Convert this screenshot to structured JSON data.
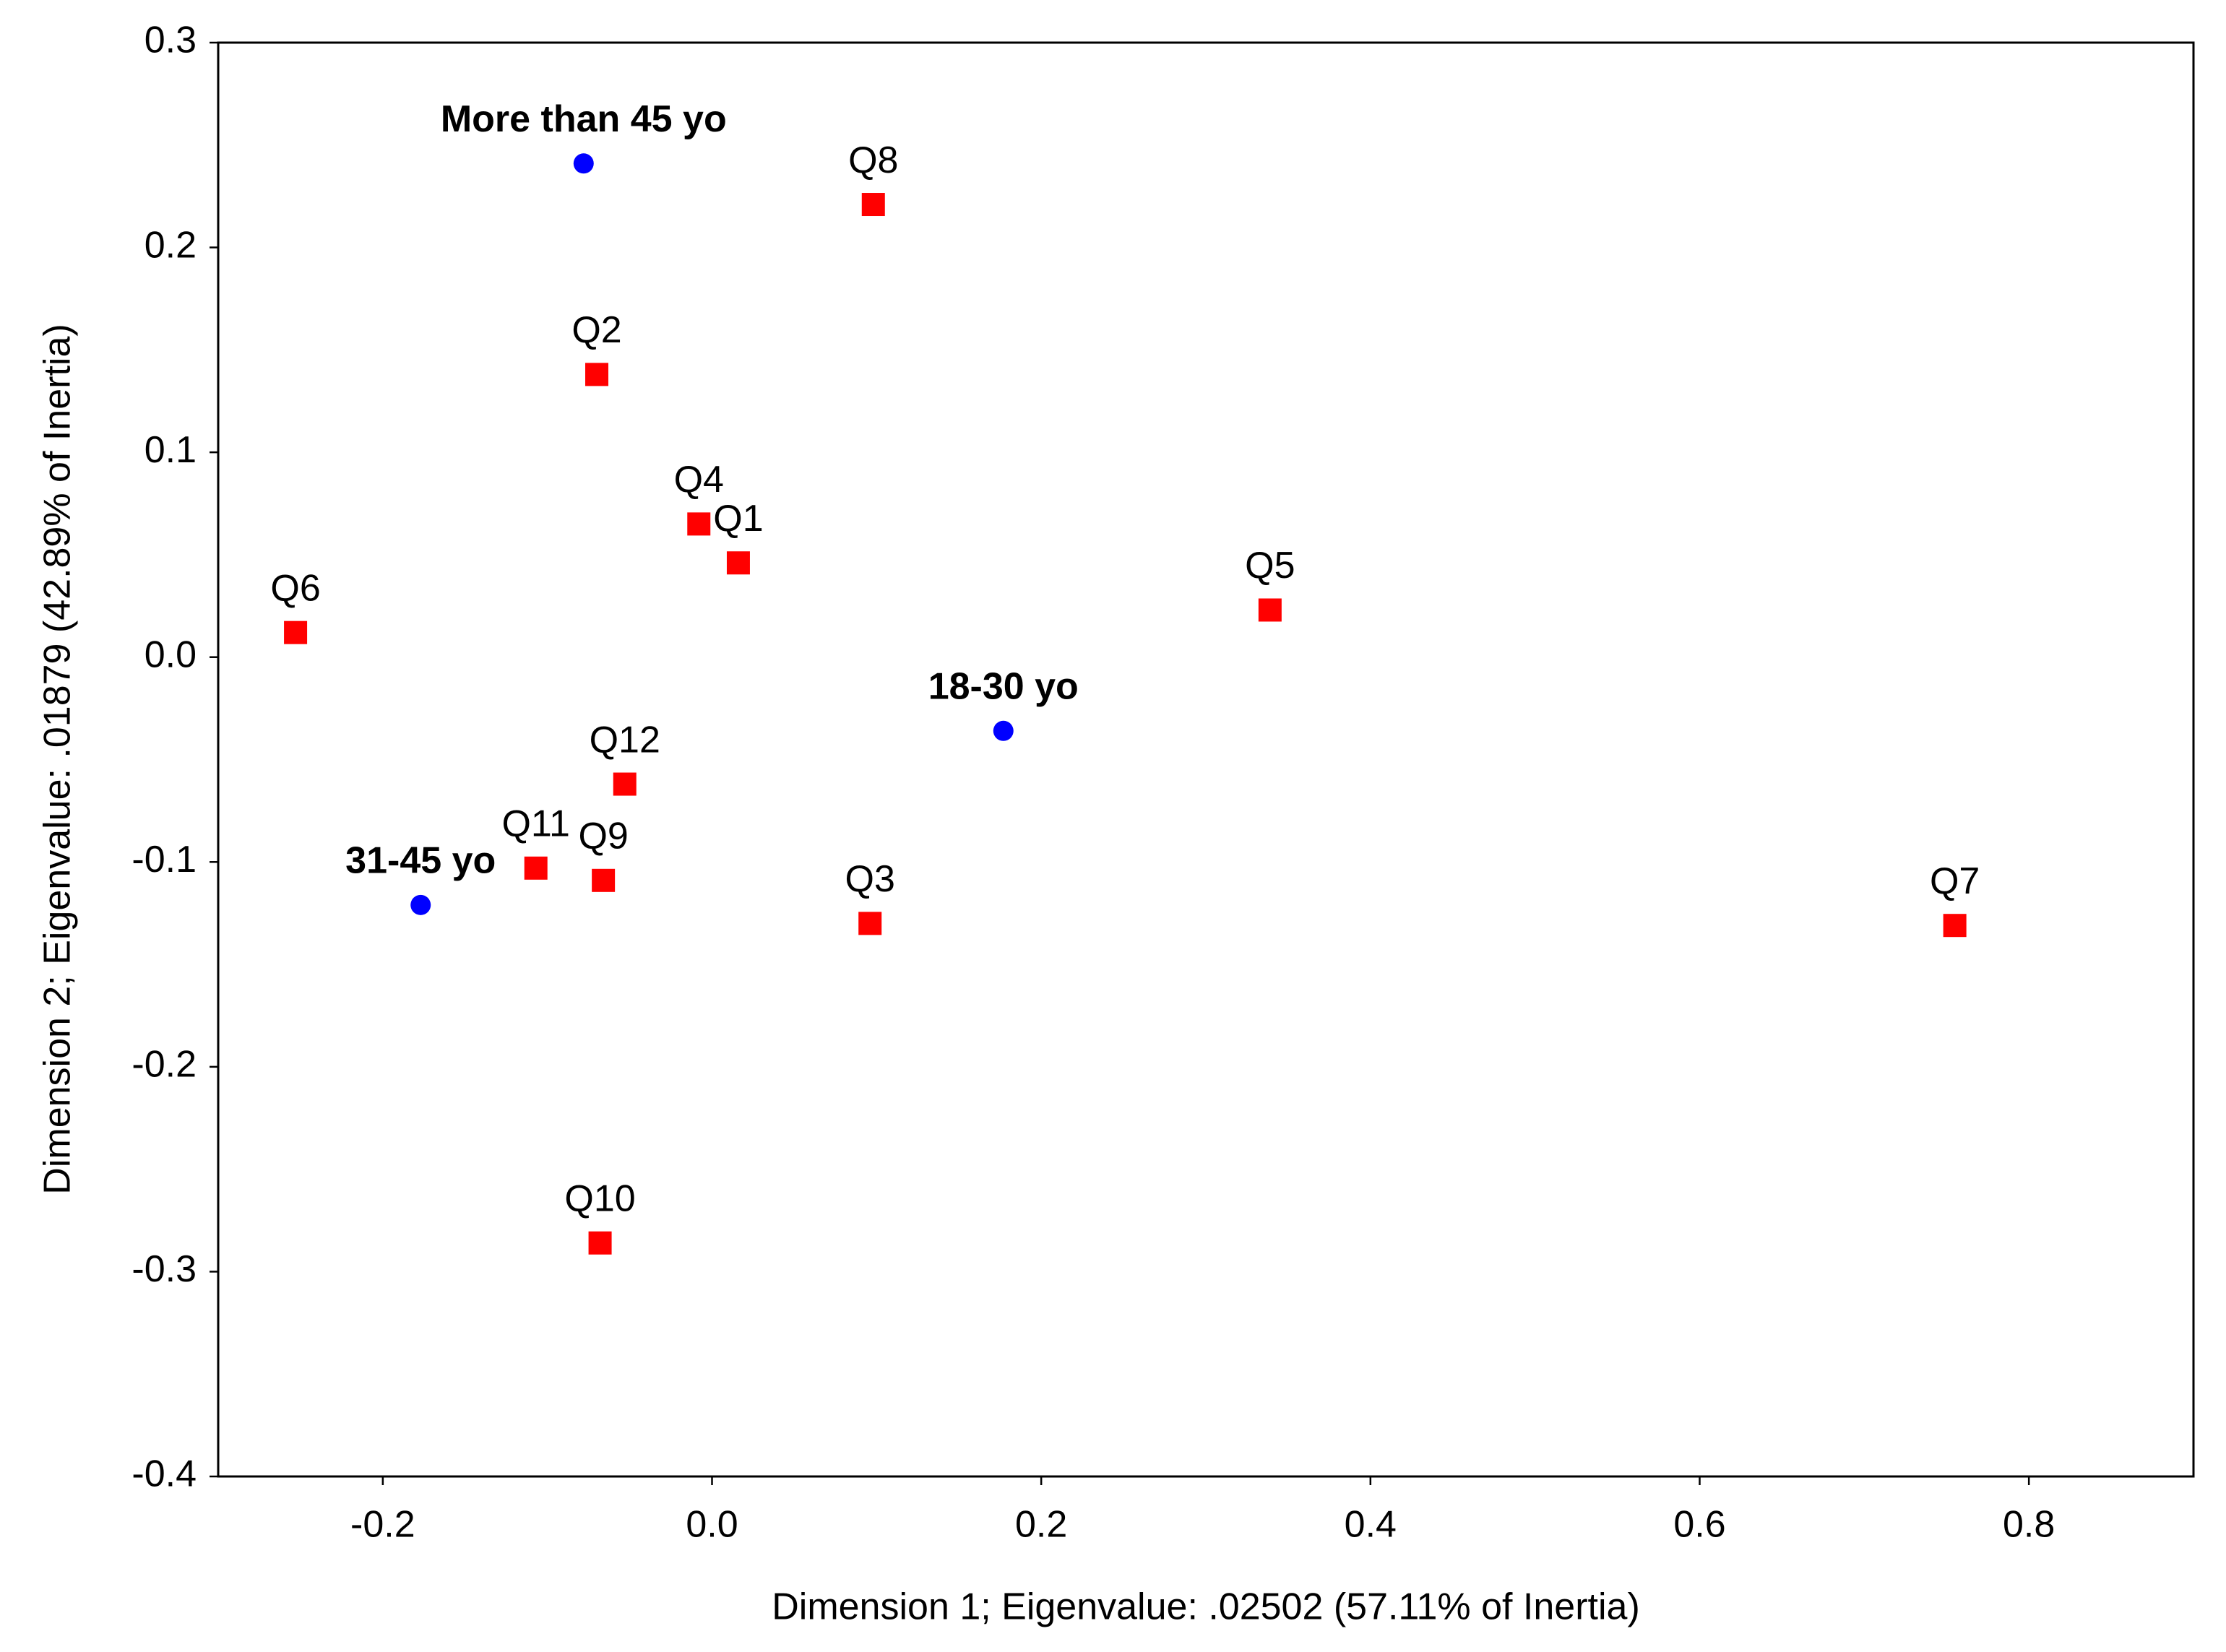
{
  "chart_data": {
    "type": "scatter",
    "xlabel": "Dimension 1; Eigenvalue: .02502 (57.11% of Inertia)",
    "ylabel": "Dimension 2; Eigenvalue: .01879 (42.89% of Inertia)",
    "xlim": [
      -0.3,
      0.9
    ],
    "ylim": [
      -0.4,
      0.3
    ],
    "xticks": [
      -0.2,
      {
        "value": 0,
        "label": "0.0"
      },
      0.2,
      0.4,
      0.6,
      0.8
    ],
    "yticks": [
      -0.4,
      -0.3,
      -0.2,
      -0.1,
      {
        "value": 0,
        "label": "0.0"
      },
      0.1,
      0.2,
      0.3
    ],
    "grid": false,
    "series": [
      {
        "color": "#0000ff",
        "marker": "circle",
        "label_weight": "bold",
        "labels": [
          "More than 45 yo",
          "18-30 yo",
          "31-45 yo"
        ],
        "x": [
          -0.078,
          0.177,
          -0.177
        ],
        "values": [
          0.241,
          -0.036,
          -0.121
        ]
      },
      {
        "color": "#ff0000",
        "marker": "square",
        "label_weight": "normal",
        "labels": [
          "Q8",
          "Q2",
          "Q4",
          "Q1",
          "Q6",
          "Q5",
          "Q12",
          "Q11",
          "Q9",
          "Q3",
          "Q7",
          "Q10"
        ],
        "x": [
          0.098,
          -0.07,
          -0.008,
          0.016,
          -0.253,
          0.339,
          -0.053,
          -0.107,
          -0.066,
          0.096,
          0.755,
          -0.068
        ],
        "values": [
          0.221,
          0.138,
          0.065,
          0.046,
          0.012,
          0.023,
          -0.062,
          -0.103,
          -0.109,
          -0.13,
          -0.131,
          -0.286
        ]
      }
    ]
  }
}
